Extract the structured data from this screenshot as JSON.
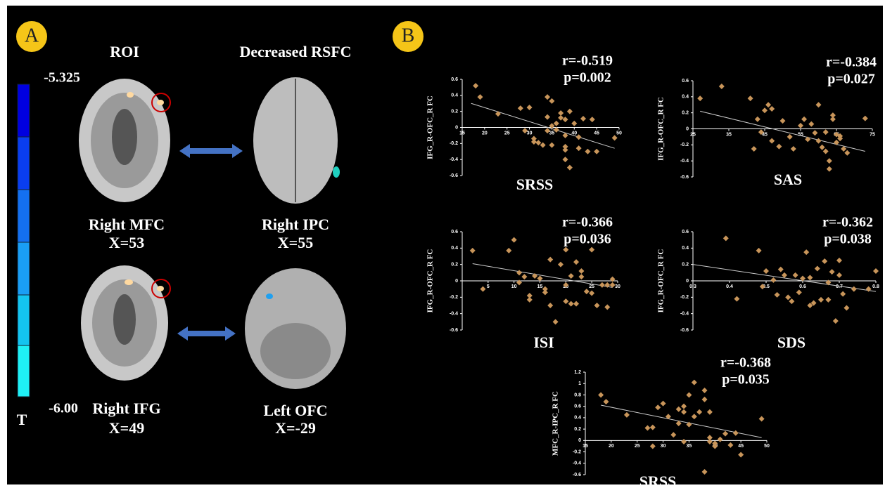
{
  "panel_a": {
    "badge": "A",
    "headers": [
      "ROI",
      "Decreased RSFC"
    ],
    "colorbar": {
      "max_label": "-5.325",
      "min_label": "-6.00",
      "unit": "T"
    },
    "labels": [
      {
        "name": "Right MFC",
        "coord": "X=53"
      },
      {
        "name": "Right IPC",
        "coord": "X=55"
      },
      {
        "name": "Right IFG",
        "coord": "X=49"
      },
      {
        "name": "Left OFC",
        "coord": "X=-29"
      }
    ]
  },
  "panel_b": {
    "badge": "B"
  },
  "chart_data": [
    {
      "type": "scatter",
      "stat_r": "r=-0.519",
      "stat_p": "p=0.002",
      "x_label": "SRSS",
      "y_label": "IFG_R-OFC_R FC",
      "color": "#c8955a",
      "xlim": [
        15,
        50
      ],
      "xticks": [
        15,
        20,
        25,
        30,
        35,
        40,
        45,
        50
      ],
      "ylim": [
        -0.6,
        0.6
      ],
      "yticks": [
        -0.6,
        -0.4,
        -0.2,
        0,
        0.2,
        0.4,
        0.6
      ],
      "x": [
        18,
        19,
        23,
        28,
        29,
        30,
        31,
        31,
        32,
        33,
        34,
        34,
        34,
        35,
        35,
        35,
        36,
        36,
        37,
        37,
        38,
        38,
        38,
        38,
        39,
        40,
        41,
        41,
        42,
        43,
        44,
        45,
        49,
        38,
        39
      ],
      "values": [
        0.52,
        0.38,
        0.17,
        0.24,
        -0.04,
        0.25,
        -0.14,
        -0.18,
        -0.19,
        -0.22,
        -0.04,
        0.38,
        0.13,
        0.02,
        -0.22,
        0.33,
        0.05,
        -0.03,
        0.18,
        0.12,
        0.1,
        -0.1,
        -0.24,
        -0.4,
        -0.5,
        0.05,
        -0.12,
        -0.26,
        0.11,
        -0.3,
        0.1,
        -0.3,
        -0.13,
        -0.28,
        0.2
      ],
      "trend": {
        "x": [
          17,
          49
        ],
        "values": [
          0.3,
          -0.26
        ]
      }
    },
    {
      "type": "scatter",
      "stat_r": "r=-0.384",
      "stat_p": "p=0.027",
      "x_label": "SAS",
      "y_label": "IFG_R-OFC_R FC",
      "color": "#c8955a",
      "xlim": [
        25,
        75
      ],
      "xticks": [
        25,
        35,
        45,
        55,
        65,
        75
      ],
      "ylim": [
        -0.6,
        0.6
      ],
      "yticks": [
        -0.6,
        -0.4,
        -0.2,
        0,
        0.2,
        0.4,
        0.6
      ],
      "x": [
        27,
        33,
        41,
        42,
        43,
        44,
        45,
        46,
        47,
        47,
        49,
        50,
        52,
        53,
        55,
        56,
        57,
        58,
        59,
        60,
        60,
        61,
        62,
        62,
        63,
        63,
        64,
        64,
        65,
        65,
        66,
        66,
        67,
        68,
        73
      ],
      "values": [
        0.38,
        0.53,
        0.38,
        -0.25,
        0.12,
        -0.04,
        0.23,
        0.3,
        0.25,
        -0.15,
        -0.22,
        0.1,
        -0.1,
        -0.25,
        0.04,
        0.12,
        -0.13,
        0.06,
        -0.05,
        0.3,
        -0.15,
        -0.23,
        -0.04,
        -0.28,
        -0.4,
        -0.5,
        0.12,
        0.17,
        -0.17,
        -0.07,
        -0.09,
        -0.12,
        -0.25,
        -0.3,
        0.13
      ],
      "trend": {
        "x": [
          27,
          73
        ],
        "values": [
          0.22,
          -0.28
        ]
      }
    },
    {
      "type": "scatter",
      "stat_r": "r=-0.366",
      "stat_p": "p=0.036",
      "x_label": "ISI",
      "y_label": "IFG_R-OFC_R FC",
      "color": "#c8955a",
      "xlim": [
        0,
        30
      ],
      "xticks": [
        5,
        10,
        15,
        20,
        25,
        30
      ],
      "ylim": [
        -0.6,
        0.6
      ],
      "yticks": [
        -0.6,
        -0.4,
        -0.2,
        0,
        0.2,
        0.4,
        0.6
      ],
      "x": [
        2,
        4,
        9,
        10,
        11,
        11,
        12,
        13,
        13,
        14,
        15,
        16,
        16,
        17,
        17,
        18,
        19,
        20,
        20,
        20,
        21,
        21,
        22,
        22,
        23,
        23,
        24,
        25,
        25,
        26,
        27,
        28,
        29,
        29,
        28
      ],
      "values": [
        0.37,
        -0.1,
        0.37,
        0.5,
        -0.02,
        0.1,
        0.05,
        -0.18,
        -0.23,
        0.06,
        0.03,
        -0.1,
        -0.14,
        0.26,
        -0.3,
        -0.5,
        0.2,
        0.38,
        -0.05,
        -0.25,
        -0.28,
        0.06,
        0.23,
        -0.28,
        0.05,
        0.12,
        -0.13,
        0.38,
        -0.15,
        -0.3,
        -0.05,
        -0.05,
        -0.05,
        0.02,
        -0.32
      ],
      "trend": {
        "x": [
          2,
          29
        ],
        "values": [
          0.21,
          -0.08
        ]
      }
    },
    {
      "type": "scatter",
      "stat_r": "r=-0.362",
      "stat_p": "p=0.038",
      "x_label": "SDS",
      "y_label": "IFG_R-OFC_R FC",
      "color": "#c8955a",
      "xlim": [
        0.3,
        0.8
      ],
      "xticks": [
        0.3,
        0.4,
        0.5,
        0.6,
        0.7,
        0.8
      ],
      "ylim": [
        -0.6,
        0.6
      ],
      "yticks": [
        -0.6,
        -0.4,
        -0.2,
        0,
        0.2,
        0.4,
        0.6
      ],
      "x": [
        0.39,
        0.42,
        0.48,
        0.49,
        0.5,
        0.52,
        0.53,
        0.54,
        0.55,
        0.56,
        0.57,
        0.58,
        0.59,
        0.6,
        0.61,
        0.62,
        0.62,
        0.63,
        0.64,
        0.65,
        0.66,
        0.67,
        0.67,
        0.68,
        0.69,
        0.7,
        0.71,
        0.72,
        0.74,
        0.78,
        0.8,
        0.7
      ],
      "values": [
        0.52,
        -0.22,
        0.37,
        -0.07,
        0.12,
        0.01,
        -0.17,
        0.14,
        0.07,
        -0.2,
        -0.25,
        0.07,
        -0.14,
        0.03,
        0.35,
        0.04,
        -0.3,
        -0.27,
        0.15,
        -0.23,
        0.24,
        -0.02,
        -0.23,
        0.11,
        -0.49,
        0.07,
        -0.16,
        -0.33,
        -0.1,
        -0.1,
        0.12,
        0.25
      ],
      "trend": {
        "x": [
          0.3,
          0.8
        ],
        "values": [
          0.2,
          -0.13
        ]
      }
    },
    {
      "type": "scatter",
      "stat_r": "r=-0.368",
      "stat_p": "p=0.035",
      "x_label": "SRSS",
      "y_label": "MFC_R-IPC_R FC",
      "color": "#c8955a",
      "xlim": [
        15,
        50
      ],
      "xticks": [
        15,
        20,
        25,
        30,
        35,
        40,
        45,
        50
      ],
      "ylim": [
        -0.6,
        1.2
      ],
      "yticks": [
        -0.6,
        -0.4,
        -0.2,
        0,
        0.2,
        0.4,
        0.6,
        0.8,
        1,
        1.2
      ],
      "x": [
        18,
        19,
        23,
        27,
        28,
        28,
        29,
        30,
        31,
        32,
        33,
        33,
        34,
        34,
        35,
        35,
        36,
        36,
        37,
        38,
        38,
        39,
        39,
        39,
        40,
        40,
        41,
        42,
        43,
        44,
        45,
        38,
        49,
        34
      ],
      "values": [
        0.8,
        0.68,
        0.45,
        0.22,
        0.23,
        -0.1,
        0.58,
        0.65,
        0.42,
        0.1,
        0.55,
        0.3,
        0.5,
        -0.02,
        0.28,
        0.8,
        1.02,
        0.42,
        0.5,
        0.88,
        0.72,
        0.5,
        -0.02,
        0.05,
        -0.05,
        -0.1,
        0.02,
        0.12,
        -0.08,
        0.13,
        -0.25,
        -0.55,
        0.38,
        0.6
      ],
      "trend": {
        "x": [
          18,
          49
        ],
        "values": [
          0.62,
          0.05
        ]
      }
    }
  ]
}
